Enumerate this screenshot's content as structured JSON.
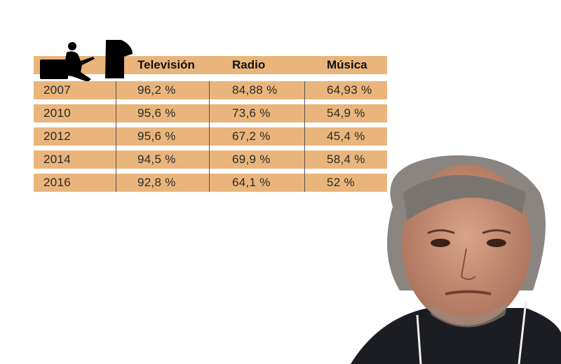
{
  "chart_data": {
    "type": "table",
    "columns": [
      "",
      "Televisión",
      "Radio",
      "Música"
    ],
    "rows": [
      {
        "year": "2007",
        "tv": "96,2 %",
        "radio": "84,88 %",
        "musica": "64,93 %"
      },
      {
        "year": "2010",
        "tv": "95,6 %",
        "radio": "73,6 %",
        "musica": "54,9 %"
      },
      {
        "year": "2012",
        "tv": "95,6 %",
        "radio": "67,2 %",
        "musica": "45,4 %"
      },
      {
        "year": "2014",
        "tv": "94,5 %",
        "radio": "69,9 %",
        "musica": "58,4 %"
      },
      {
        "year": "2016",
        "tv": "92,8 %",
        "radio": "64,1 %",
        "musica": "52 %"
      }
    ],
    "band_color": "#e9b57c"
  },
  "icons": [
    "person-watching-tv-silhouette-icon",
    "tv-silhouette-icon"
  ]
}
